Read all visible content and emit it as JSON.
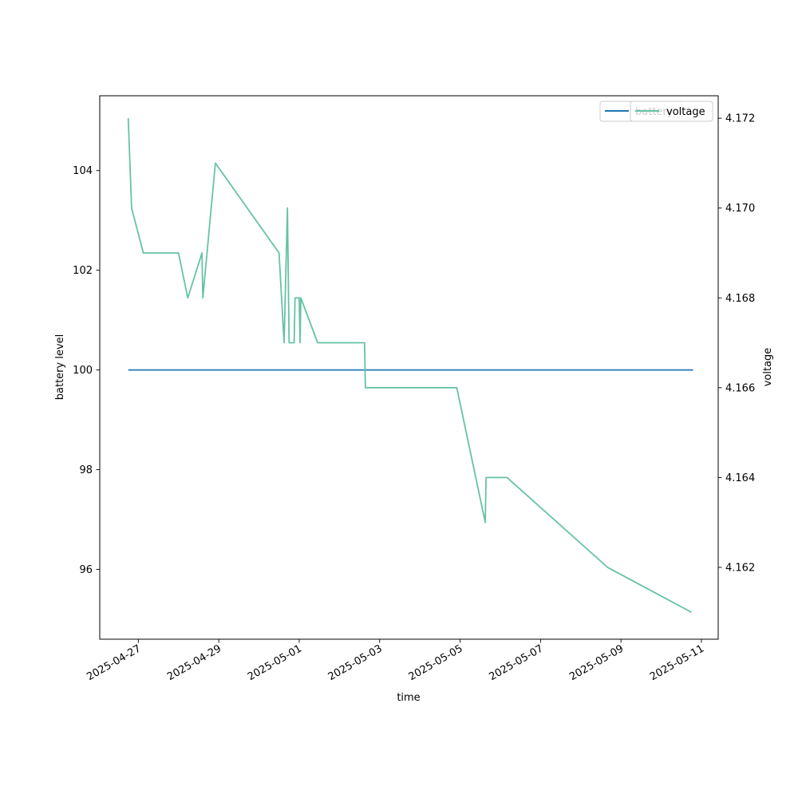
{
  "chart_data": {
    "type": "line",
    "xlabel": "time",
    "ylabel": "battery level",
    "y2label": "voltage",
    "ylim": [
      94.6,
      105.5
    ],
    "y2lim": [
      4.1604,
      4.1725
    ],
    "xlim": [
      "2025-04-26T01:00",
      "2025-05-11T10:00"
    ],
    "x_ticks": [
      "2025-04-27",
      "2025-04-29",
      "2025-05-01",
      "2025-05-03",
      "2025-05-05",
      "2025-05-07",
      "2025-05-09",
      "2025-05-11"
    ],
    "y_ticks": [
      96,
      98,
      100,
      102,
      104
    ],
    "y2_ticks": [
      4.162,
      4.164,
      4.166,
      4.168,
      4.17,
      4.172
    ],
    "legend": {
      "placement": "top-right",
      "overlapping": true
    },
    "grid": false,
    "series": [
      {
        "name": "battery",
        "axis": "left",
        "color": "#1f77b4",
        "points": [
          {
            "x": "2025-04-26T18:00",
            "y": 100
          },
          {
            "x": "2025-05-10T19:00",
            "y": 100
          }
        ]
      },
      {
        "name": "voltage",
        "axis": "right",
        "color": "#66c2a5",
        "points": [
          {
            "x": "2025-04-26T18:00",
            "y": 4.172
          },
          {
            "x": "2025-04-26T20:00",
            "y": 4.17
          },
          {
            "x": "2025-04-27T03:00",
            "y": 4.169
          },
          {
            "x": "2025-04-28T00:00",
            "y": 4.169
          },
          {
            "x": "2025-04-28T05:30",
            "y": 4.168
          },
          {
            "x": "2025-04-28T14:00",
            "y": 4.169
          },
          {
            "x": "2025-04-28T14:30",
            "y": 4.168
          },
          {
            "x": "2025-04-28T22:00",
            "y": 4.171
          },
          {
            "x": "2025-04-30T12:00",
            "y": 4.169
          },
          {
            "x": "2025-04-30T15:00",
            "y": 4.167
          },
          {
            "x": "2025-04-30T17:00",
            "y": 4.17
          },
          {
            "x": "2025-04-30T18:00",
            "y": 4.167
          },
          {
            "x": "2025-04-30T21:00",
            "y": 4.167
          },
          {
            "x": "2025-04-30T21:30",
            "y": 4.168
          },
          {
            "x": "2025-05-01T00:00",
            "y": 4.168
          },
          {
            "x": "2025-05-01T00:30",
            "y": 4.167
          },
          {
            "x": "2025-05-01T01:00",
            "y": 4.168
          },
          {
            "x": "2025-05-01T11:00",
            "y": 4.167
          },
          {
            "x": "2025-05-02T15:00",
            "y": 4.167
          },
          {
            "x": "2025-05-02T15:30",
            "y": 4.166
          },
          {
            "x": "2025-05-04T22:00",
            "y": 4.166
          },
          {
            "x": "2025-05-05T15:00",
            "y": 4.163
          },
          {
            "x": "2025-05-05T15:30",
            "y": 4.164
          },
          {
            "x": "2025-05-06T04:00",
            "y": 4.164
          },
          {
            "x": "2025-05-08T16:00",
            "y": 4.162
          },
          {
            "x": "2025-05-10T18:00",
            "y": 4.161
          }
        ]
      }
    ]
  }
}
